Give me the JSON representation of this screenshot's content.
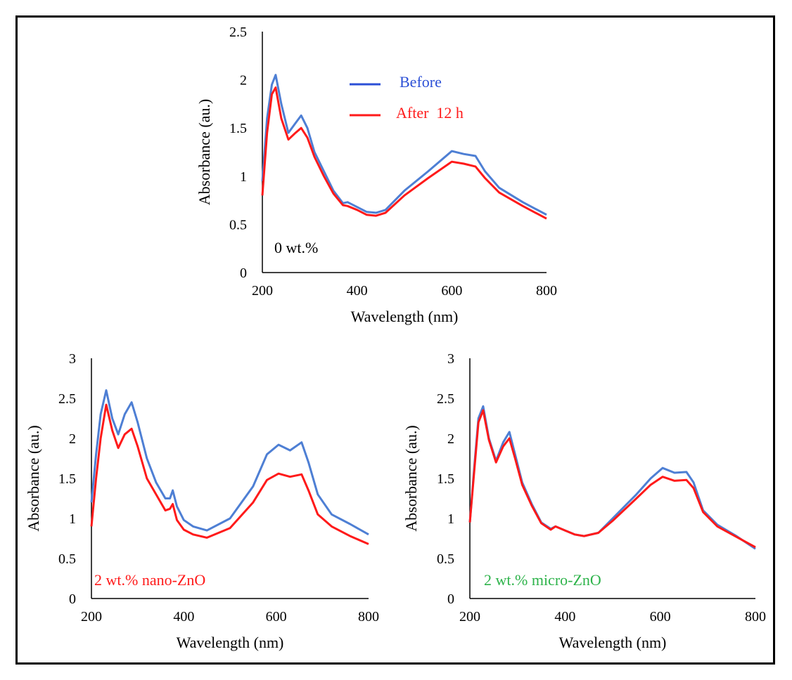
{
  "colors": {
    "before": "#4e7fd4",
    "after": "#ff1a1a",
    "legend_before": "#2b4fd6",
    "nano": "#ff1a1a",
    "micro": "#2db34a"
  },
  "legend": {
    "before": "Before",
    "after": "After  12 h"
  },
  "chart_data": [
    {
      "type": "line",
      "panel_label": "0 wt.%",
      "xlabel": "Wavelength  (nm)",
      "ylabel": "Absorbance  (au.)",
      "xlim": [
        200,
        800
      ],
      "ylim": [
        0,
        2.5
      ],
      "xticks": [
        "200",
        "400",
        "600",
        "800"
      ],
      "yticks": [
        "0",
        "0.5",
        "1",
        "1.5",
        "2",
        "2.5"
      ],
      "x": [
        200,
        210,
        220,
        228,
        240,
        255,
        270,
        282,
        295,
        310,
        330,
        350,
        370,
        380,
        400,
        420,
        440,
        460,
        500,
        550,
        600,
        625,
        650,
        670,
        700,
        750,
        800
      ],
      "series": [
        {
          "name": "Before",
          "values": [
            0.95,
            1.6,
            1.95,
            2.05,
            1.75,
            1.45,
            1.55,
            1.63,
            1.5,
            1.25,
            1.05,
            0.85,
            0.72,
            0.73,
            0.68,
            0.63,
            0.62,
            0.65,
            0.85,
            1.05,
            1.26,
            1.23,
            1.21,
            1.05,
            0.88,
            0.73,
            0.6
          ]
        },
        {
          "name": "After 12 h",
          "values": [
            0.8,
            1.45,
            1.85,
            1.92,
            1.6,
            1.38,
            1.45,
            1.5,
            1.4,
            1.2,
            1.0,
            0.82,
            0.7,
            0.69,
            0.65,
            0.6,
            0.59,
            0.62,
            0.8,
            0.98,
            1.15,
            1.13,
            1.1,
            0.98,
            0.83,
            0.69,
            0.56
          ]
        }
      ]
    },
    {
      "type": "line",
      "panel_label": "2 wt.% nano-ZnO",
      "xlabel": "Wavelength  (nm)",
      "ylabel": "Absorbance  (au.)",
      "xlim": [
        200,
        800
      ],
      "ylim": [
        0,
        3
      ],
      "xticks": [
        "200",
        "400",
        "600",
        "800"
      ],
      "yticks": [
        "0",
        "0.5",
        "1",
        "1.5",
        "2",
        "2.5",
        "3"
      ],
      "x": [
        200,
        210,
        220,
        232,
        245,
        258,
        272,
        287,
        300,
        320,
        340,
        360,
        370,
        376,
        385,
        400,
        420,
        450,
        500,
        550,
        580,
        605,
        630,
        655,
        670,
        690,
        720,
        760,
        800
      ],
      "series": [
        {
          "name": "Before",
          "values": [
            1.2,
            1.8,
            2.3,
            2.6,
            2.25,
            2.05,
            2.3,
            2.45,
            2.2,
            1.75,
            1.45,
            1.25,
            1.25,
            1.35,
            1.15,
            0.98,
            0.9,
            0.85,
            1.0,
            1.4,
            1.8,
            1.92,
            1.85,
            1.95,
            1.7,
            1.3,
            1.05,
            0.93,
            0.8
          ]
        },
        {
          "name": "After 12 h",
          "values": [
            0.9,
            1.5,
            2.0,
            2.42,
            2.1,
            1.88,
            2.05,
            2.12,
            1.9,
            1.5,
            1.3,
            1.1,
            1.12,
            1.18,
            0.98,
            0.86,
            0.8,
            0.76,
            0.88,
            1.2,
            1.48,
            1.56,
            1.52,
            1.55,
            1.35,
            1.05,
            0.9,
            0.78,
            0.68
          ]
        }
      ]
    },
    {
      "type": "line",
      "panel_label": "2 wt.% micro-ZnO",
      "xlabel": "Wavelength  (nm)",
      "ylabel": "Absorbance  (au.)",
      "xlim": [
        200,
        800
      ],
      "ylim": [
        0,
        3
      ],
      "xticks": [
        "200",
        "400",
        "600",
        "800"
      ],
      "yticks": [
        "0",
        "0.5",
        "1",
        "1.5",
        "2",
        "2.5",
        "3"
      ],
      "x": [
        200,
        210,
        218,
        228,
        240,
        255,
        270,
        283,
        295,
        310,
        330,
        350,
        370,
        380,
        400,
        420,
        440,
        470,
        500,
        550,
        580,
        605,
        630,
        655,
        670,
        690,
        720,
        760,
        800
      ],
      "series": [
        {
          "name": "Before",
          "values": [
            0.95,
            1.7,
            2.25,
            2.4,
            2.0,
            1.72,
            1.95,
            2.08,
            1.8,
            1.45,
            1.18,
            0.95,
            0.87,
            0.9,
            0.85,
            0.8,
            0.78,
            0.82,
            1.0,
            1.3,
            1.5,
            1.63,
            1.57,
            1.58,
            1.45,
            1.1,
            0.92,
            0.78,
            0.62
          ]
        },
        {
          "name": "After 12 h",
          "values": [
            0.95,
            1.65,
            2.2,
            2.35,
            1.98,
            1.7,
            1.9,
            2.0,
            1.75,
            1.42,
            1.16,
            0.94,
            0.86,
            0.9,
            0.85,
            0.8,
            0.78,
            0.82,
            0.97,
            1.25,
            1.42,
            1.52,
            1.47,
            1.48,
            1.38,
            1.08,
            0.9,
            0.77,
            0.64
          ]
        }
      ]
    }
  ]
}
